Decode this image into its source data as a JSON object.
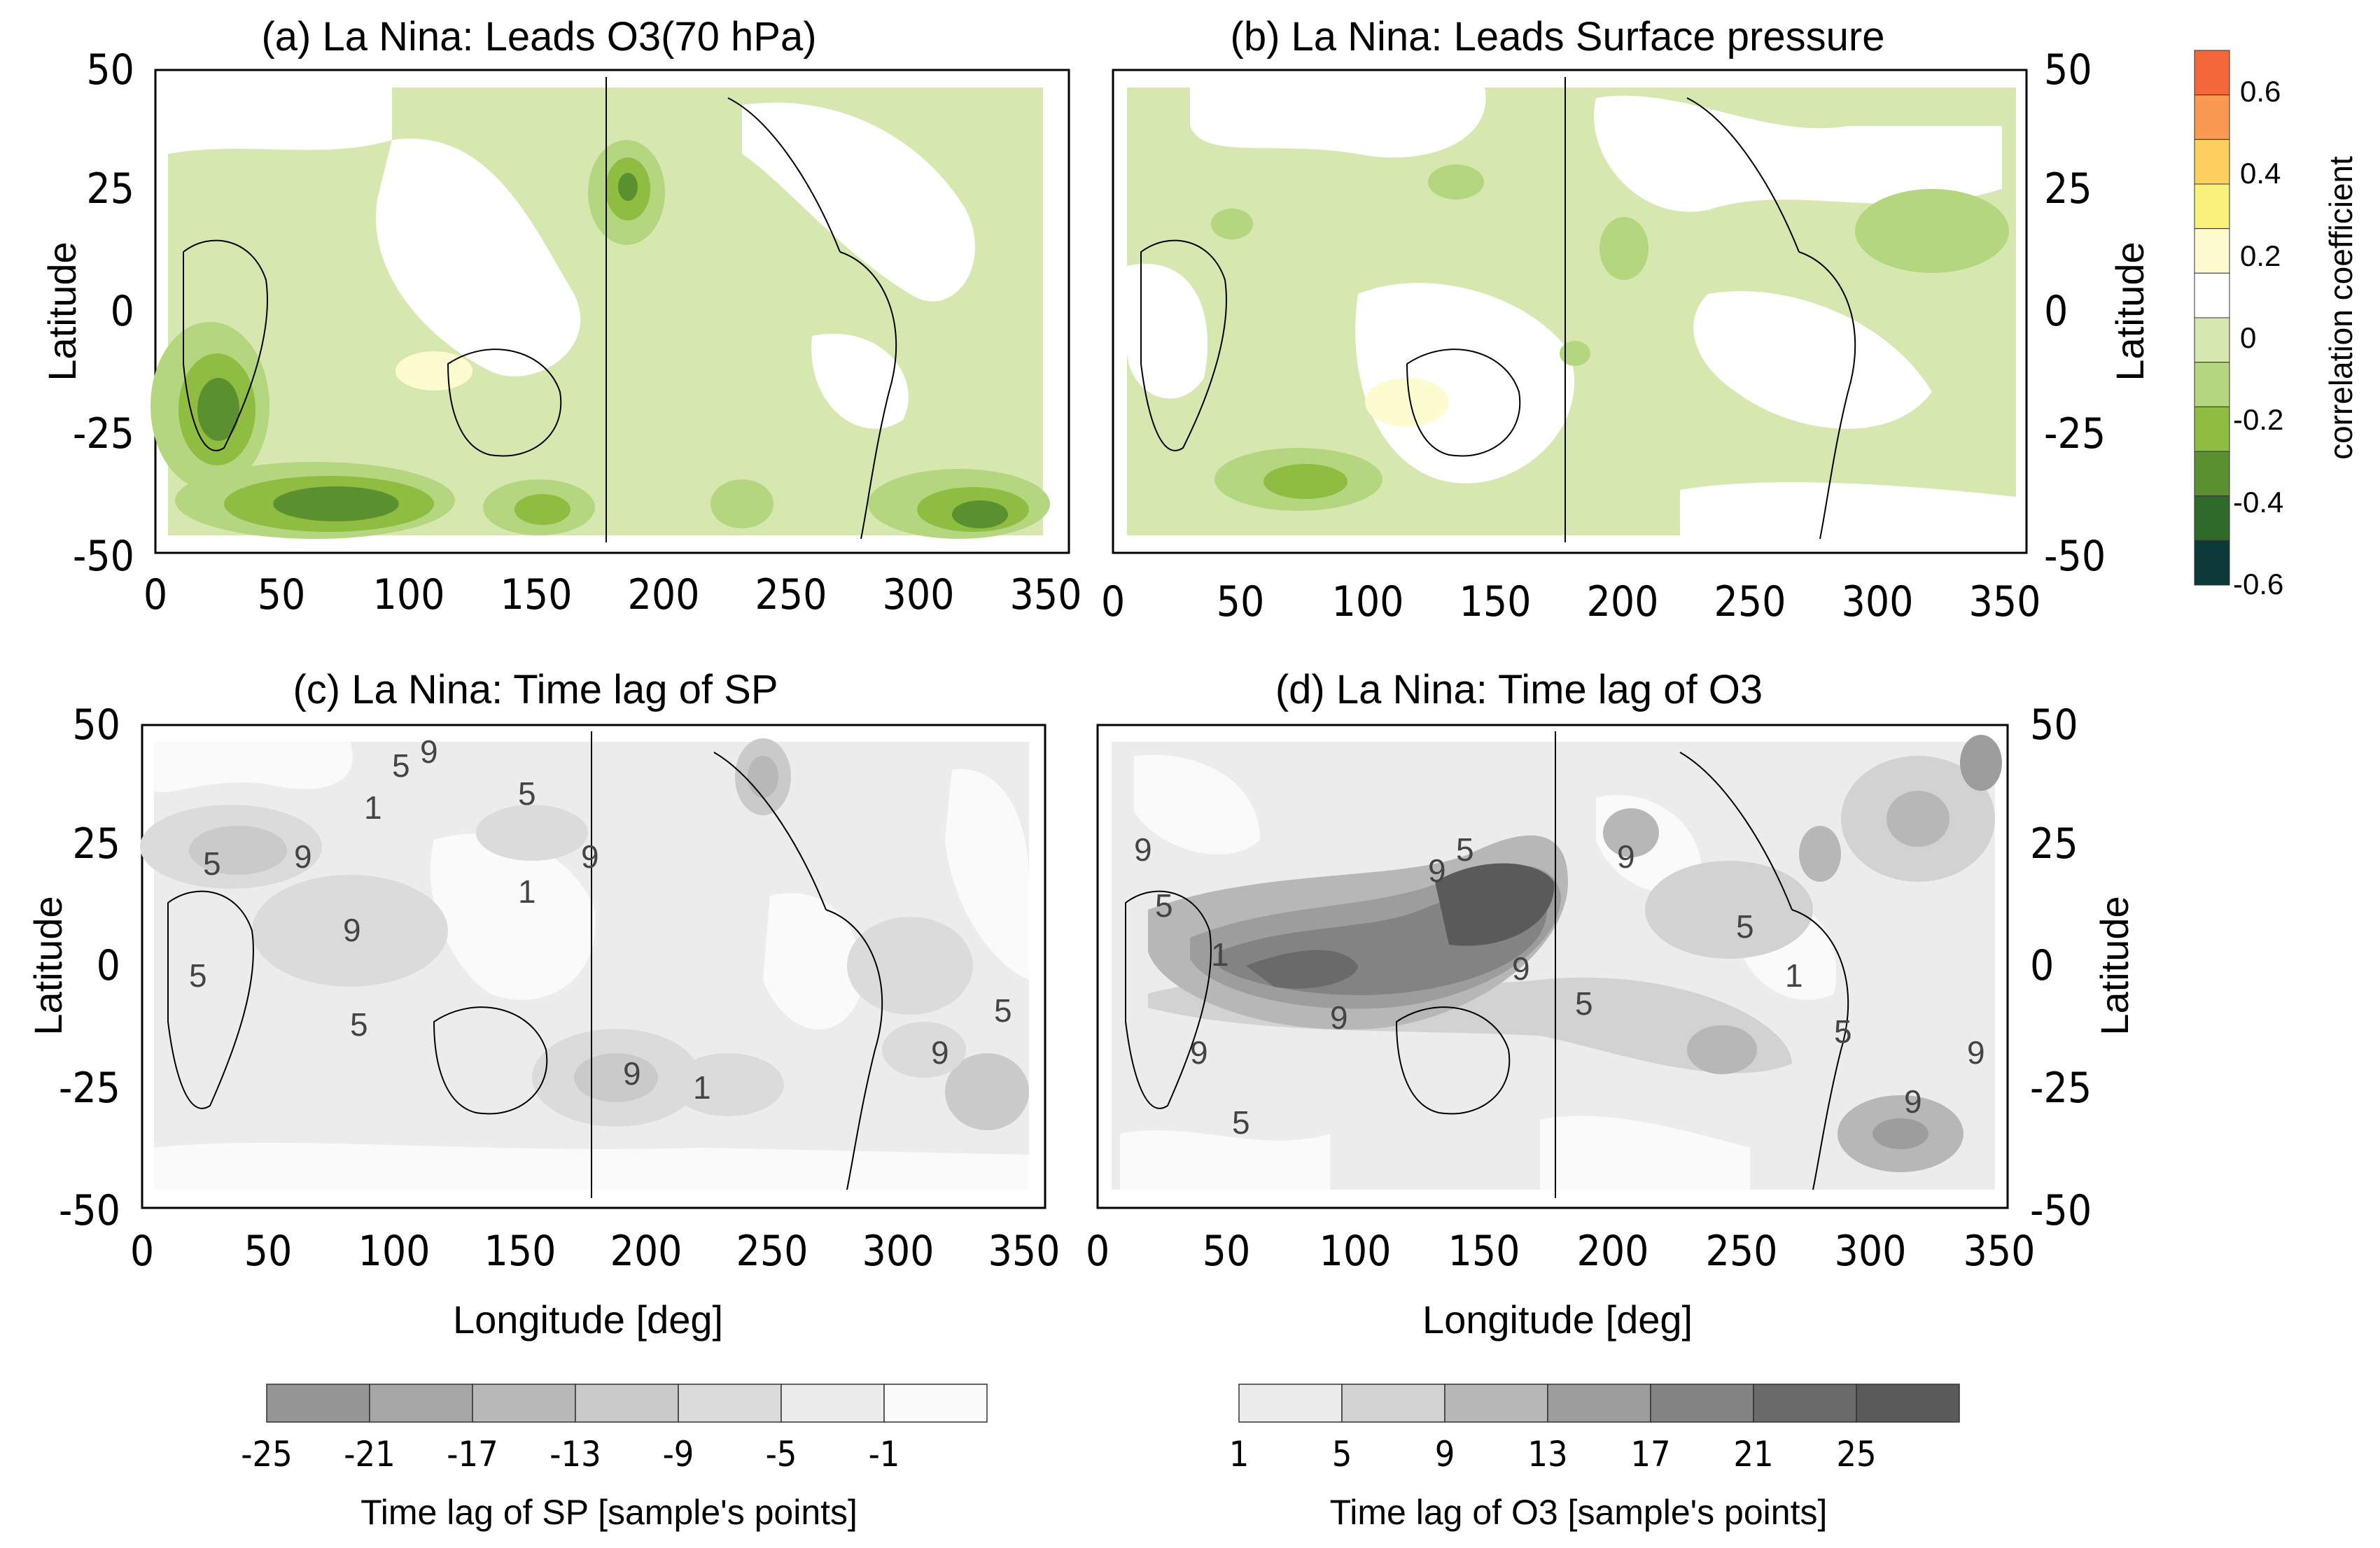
{
  "panels": [
    {
      "id": "a",
      "title": "(a)  La Nina: Leads O3(70 hPa)"
    },
    {
      "id": "b",
      "title": "(b)  La Nina: Leads Surface pressure"
    },
    {
      "id": "c",
      "title": "(c)  La Nina: Time lag of SP"
    },
    {
      "id": "d",
      "title": "(d)  La Nina: Time lag of O3"
    }
  ],
  "axes": {
    "x_ticks": [
      "0",
      "50",
      "100",
      "150",
      "200",
      "250",
      "300",
      "350"
    ],
    "y_ticks": [
      "50",
      "25",
      "0",
      "-25",
      "-50"
    ],
    "y_label": "Latitude",
    "x_label": "Longitude [deg]"
  },
  "correlation_colorbar": {
    "title": "correlation coefficient",
    "labels": [
      "0.6",
      "0.4",
      "0.2",
      "0",
      "-0.2",
      "-0.4",
      "-0.6"
    ],
    "colors": [
      "#f4683a",
      "#fa9a50",
      "#fdcf5c",
      "#f8f17c",
      "#fdfbd0",
      "#ffffff",
      "#d6e8b0",
      "#b4d67e",
      "#8ebd42",
      "#5a9030",
      "#2f6a2a",
      "#0c3a38"
    ]
  },
  "sp_colorbar": {
    "title": "Time lag of SP [sample's points]",
    "labels": [
      "-25",
      "-21",
      "-17",
      "-13",
      "-9",
      "-5",
      "-1"
    ],
    "colors": [
      "#959595",
      "#a6a6a6",
      "#b8b8b8",
      "#cacaca",
      "#dbdbdb",
      "#ececec",
      "#fafafa"
    ]
  },
  "o3_colorbar": {
    "title": "Time lag of O3 [sample's points]",
    "labels": [
      "1",
      "5",
      "9",
      "13",
      "17",
      "21",
      "25"
    ],
    "colors": [
      "#ececec",
      "#d2d2d2",
      "#b7b7b7",
      "#9d9d9d",
      "#838383",
      "#6a6a6a",
      "#5a5a5a"
    ]
  },
  "contour_labels": {
    "c": [
      "5",
      "9",
      "1",
      "5",
      "9",
      "9",
      "1",
      "5",
      "9",
      "5",
      "5",
      "9",
      "1",
      "5",
      "9"
    ],
    "d": [
      "9",
      "5",
      "1",
      "9",
      "5",
      "9",
      "5",
      "9",
      "9",
      "5",
      "9",
      "5",
      "1",
      "5",
      "9",
      "9"
    ]
  }
}
